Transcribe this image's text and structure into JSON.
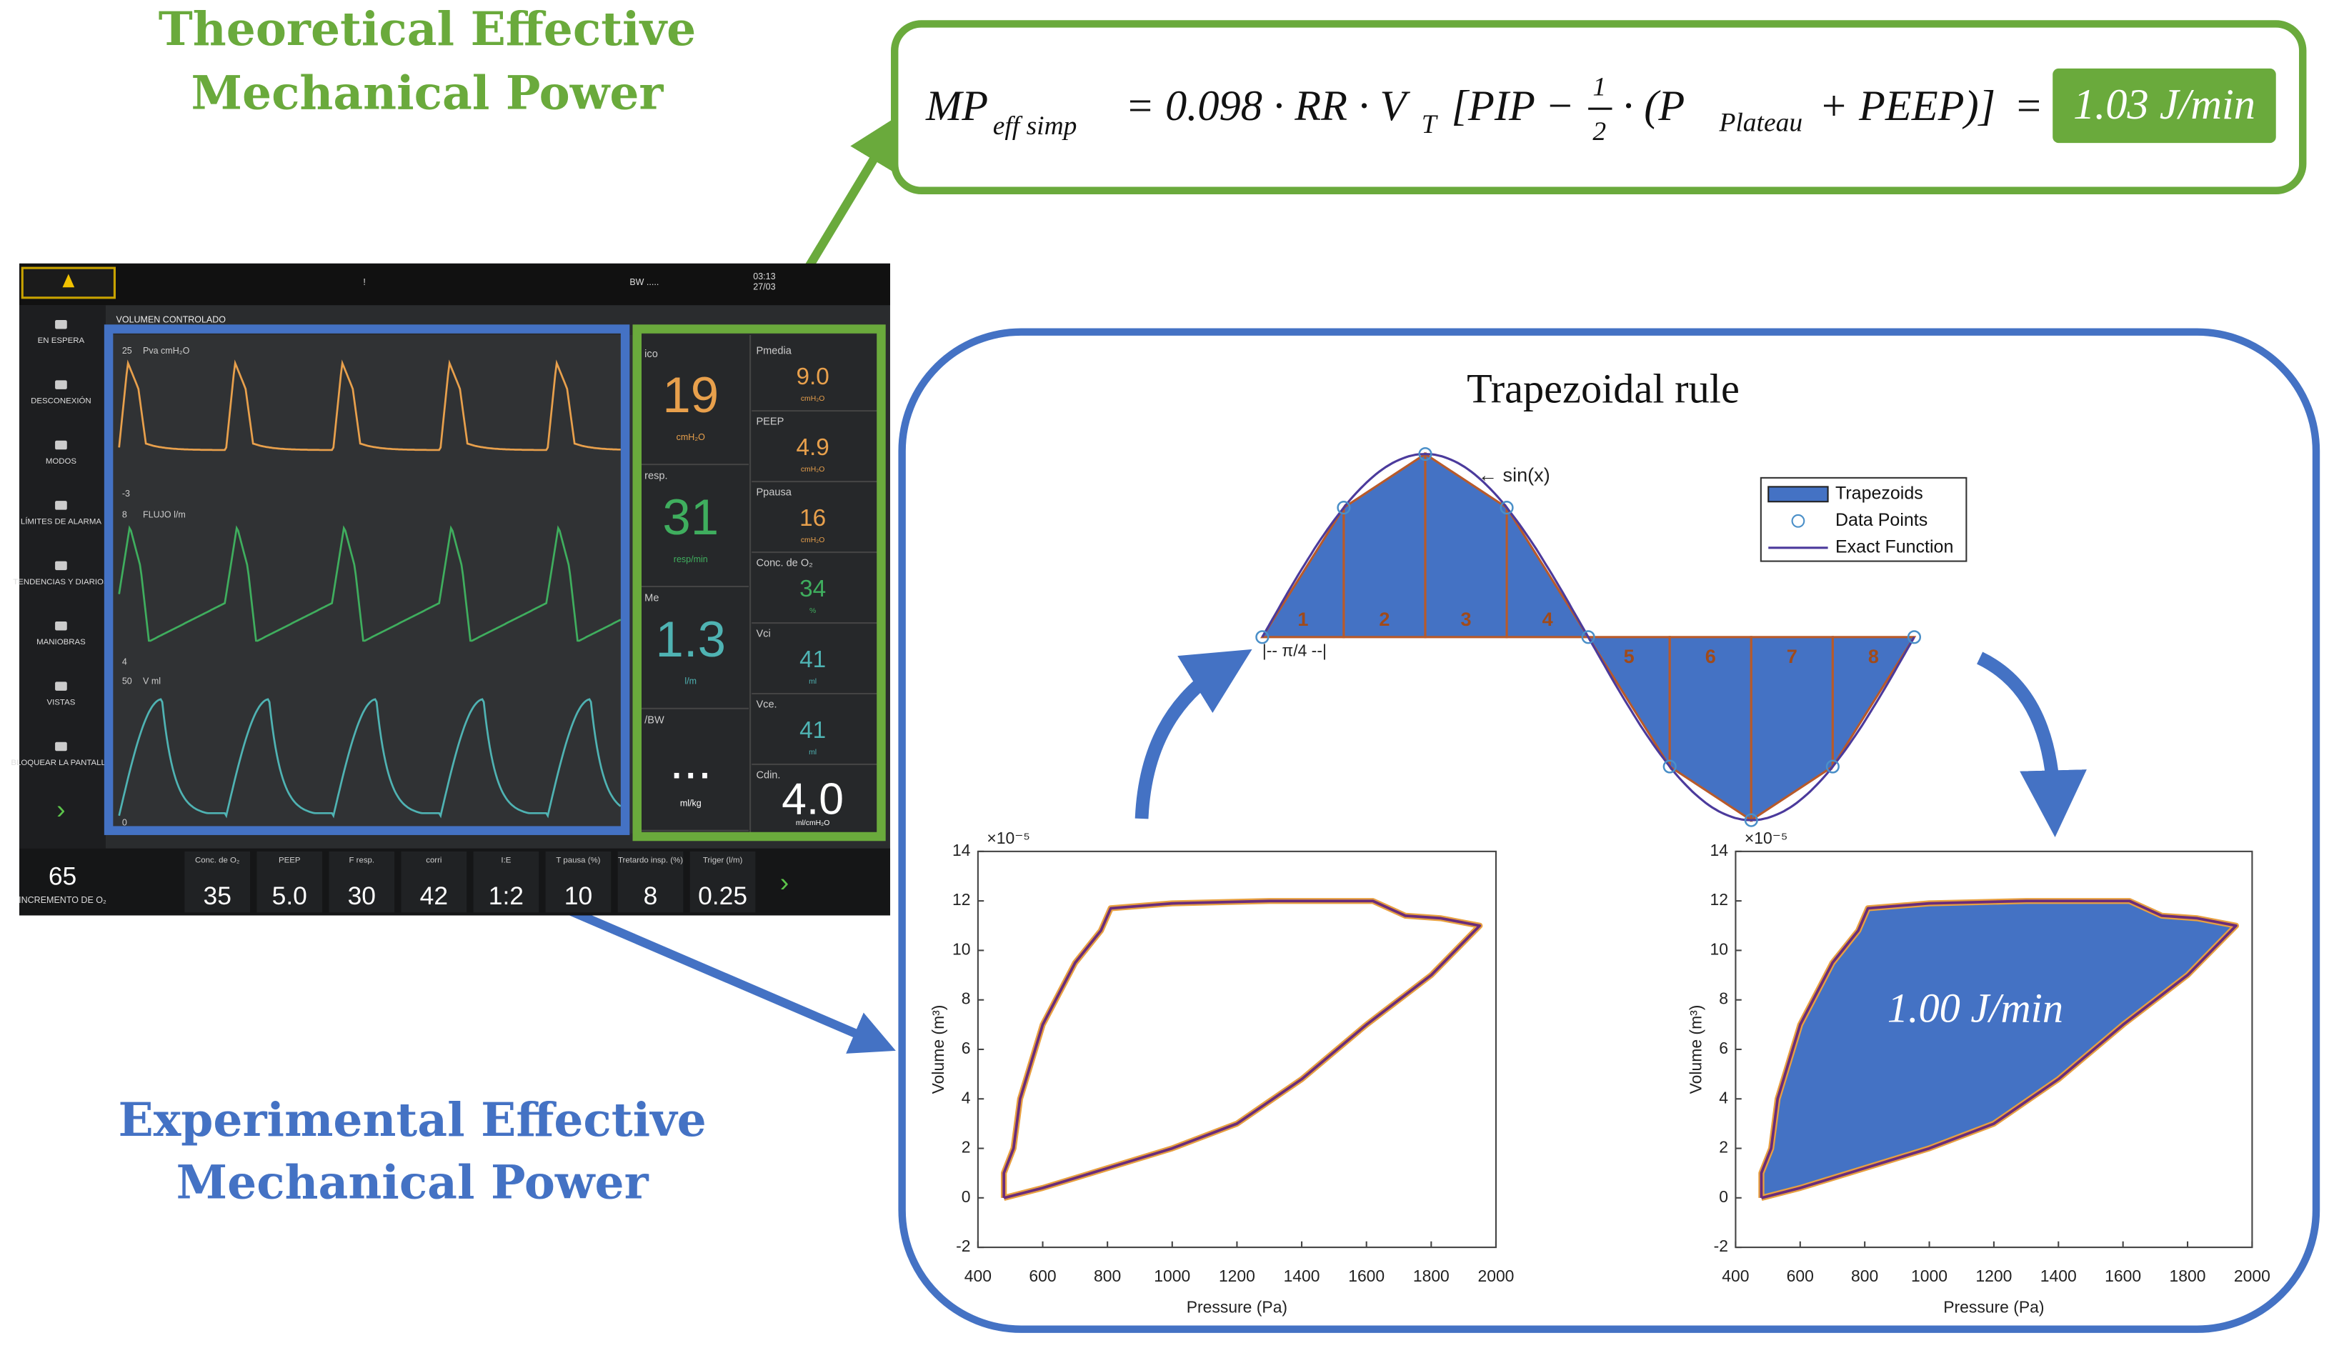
{
  "titles": {
    "theoretical": [
      "Theoretical Effective",
      "Mechanical Power"
    ],
    "experimental": [
      "Experimental Effective",
      "Mechanical Power"
    ]
  },
  "formula": {
    "mp": "MP",
    "mp_sub": "eff simp",
    "part1": "= 0.098 · RR · V",
    "vt_sub": "T",
    "part2": "[PIP −",
    "frac_num": "1",
    "frac_den": "2",
    "part3": "· (P",
    "p_sub": "Plateau",
    "part4": "+ PEEP)]",
    "equals": "=",
    "result": "1.03 J/min"
  },
  "screen": {
    "mode": "VOLUMEN CONTROLADO",
    "time": "03:13",
    "date": "27/03",
    "bw": "BW .....",
    "alert": "!",
    "sidebar": [
      "EN ESPERA",
      "DESCONEXIÓN",
      "MODOS",
      "LÍMITES DE ALARMA",
      "TENDENCIAS Y DIARIOS",
      "MANIOBRAS",
      "VISTAS",
      "BLOQUEAR LA PANTALLA"
    ],
    "waves": [
      {
        "label": "Pva cmH₂O",
        "top": "25",
        "bottom": "-3"
      },
      {
        "label": "FLUJO l/m",
        "top": "8",
        "bottom": "4"
      },
      {
        "label": "V ml",
        "top": "50",
        "bottom": "0"
      }
    ],
    "readouts_big": [
      {
        "label": "ico",
        "value": "19",
        "unit": "cmH₂O",
        "color": "#e8a04c"
      },
      {
        "label": "resp.",
        "value": "31",
        "unit": "resp/min",
        "color": "#3fae5e"
      },
      {
        "label": "Me",
        "value": "1.3",
        "unit": "l/m",
        "color": "#4fb3b3"
      },
      {
        "label": "/BW",
        "value": "...",
        "unit": "ml/kg",
        "color": "#ffffff"
      }
    ],
    "readouts_small": [
      {
        "label": "Pmedia",
        "value": "9.0",
        "unit": "cmH₂O",
        "color": "#e8a04c"
      },
      {
        "label": "PEEP",
        "value": "4.9",
        "unit": "cmH₂O",
        "color": "#e8a04c"
      },
      {
        "label": "Ppausa",
        "value": "16",
        "unit": "cmH₂O",
        "color": "#e8a04c"
      },
      {
        "label": "Conc. de O₂",
        "value": "34",
        "unit": "%",
        "color": "#3fae5e"
      },
      {
        "label": "Vci",
        "value": "41",
        "unit": "ml",
        "color": "#4fb3b3"
      },
      {
        "label": "Vce.",
        "value": "41",
        "unit": "ml",
        "color": "#4fb3b3"
      },
      {
        "label": "Cdin.",
        "value": "4.0",
        "unit": "ml/cmH₂O",
        "color": "#ffffff"
      }
    ],
    "o2_boost": {
      "value": "65",
      "label": "INCREMENTO DE O₂"
    },
    "settings": [
      {
        "label": "Conc. de O₂",
        "value": "35"
      },
      {
        "label": "PEEP",
        "value": "5.0"
      },
      {
        "label": "F resp.",
        "value": "30"
      },
      {
        "label": "corri",
        "value": "42"
      },
      {
        "label": "I:E",
        "value": "1:2"
      },
      {
        "label": "T pausa (%)",
        "value": "10"
      },
      {
        "label": "Tretardo insp. (%)",
        "value": "8"
      },
      {
        "label": "Triger (l/m)",
        "value": "0.25"
      }
    ]
  },
  "trapezoid": {
    "title": "Trapezoidal rule",
    "curve_label": "← sin(x)",
    "step_label": "|-- π/4 --|",
    "labels": [
      "1",
      "2",
      "3",
      "4",
      "5",
      "6",
      "7",
      "8"
    ],
    "points": [
      0,
      0.7071,
      1,
      0.7071,
      0,
      -0.7071,
      -1,
      -0.7071,
      0
    ],
    "legend": [
      "Trapezoids",
      "Data Points",
      "Exact Function"
    ]
  },
  "pv": {
    "xlabel": "Pressure (Pa)",
    "ylabel": "Volume (m³)",
    "exponent": "×10⁻⁵",
    "xlim": [
      400,
      2000
    ],
    "ylim": [
      -2,
      14
    ],
    "xticks": [
      400,
      600,
      800,
      1000,
      1200,
      1400,
      1600,
      1800,
      2000
    ],
    "yticks": [
      -2,
      0,
      2,
      4,
      6,
      8,
      10,
      12,
      14
    ],
    "annotation": "1.00 J/min",
    "loop_pressure": [
      480,
      600,
      800,
      1000,
      1200,
      1400,
      1600,
      1800,
      1950,
      1830,
      1720,
      1620,
      1300,
      1000,
      810,
      780,
      700,
      600,
      530,
      510,
      480,
      480
    ],
    "loop_volume": [
      0,
      0.4,
      1.2,
      2,
      3,
      4.8,
      7,
      9,
      11,
      11.3,
      11.4,
      12,
      12,
      11.9,
      11.7,
      10.8,
      9.5,
      7,
      4,
      2,
      1,
      0
    ]
  }
}
